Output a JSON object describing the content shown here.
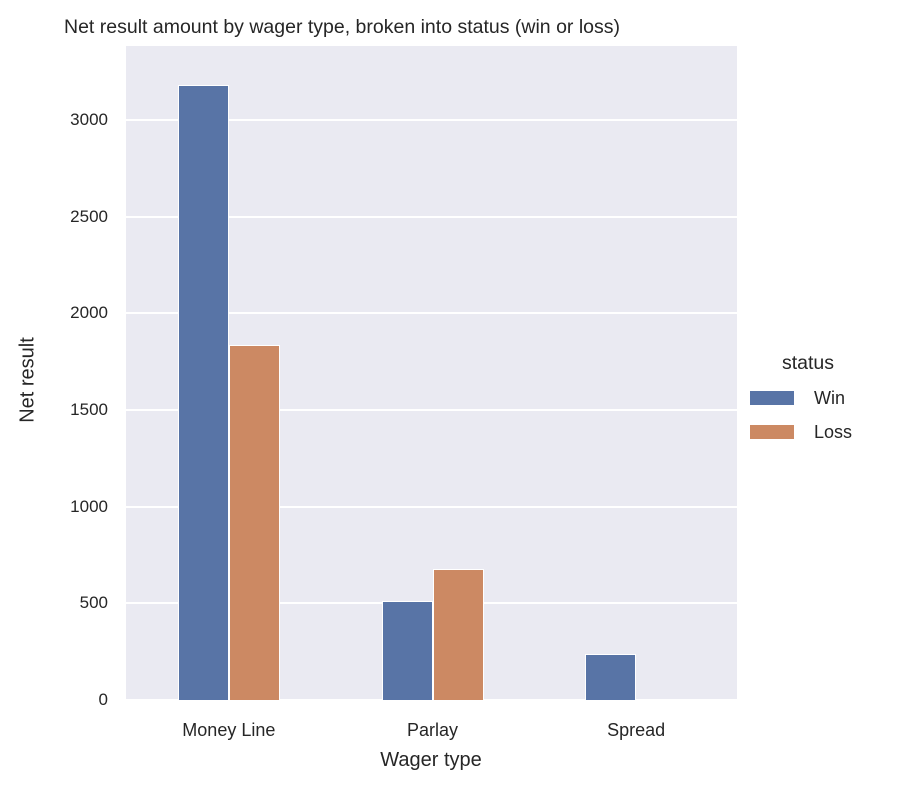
{
  "chart_data": {
    "type": "bar",
    "title": "Net result amount by wager type, broken into status (win or loss)",
    "xlabel": "Wager type",
    "ylabel": "Net result",
    "categories": [
      "Money Line",
      "Parlay",
      "Spread"
    ],
    "series": [
      {
        "name": "Win",
        "color": "#5874a6",
        "values": [
          3180,
          512,
          238
        ]
      },
      {
        "name": "Loss",
        "color": "#cc8963",
        "values": [
          1835,
          677,
          0
        ]
      }
    ],
    "ylim": [
      0,
      3390
    ],
    "yticks": [
      0,
      500,
      1000,
      1500,
      2000,
      2500,
      3000
    ],
    "ytick_labels": [
      "0",
      "500",
      "1000",
      "1500",
      "2000",
      "2500",
      "3000"
    ],
    "grid": true,
    "legend": {
      "title": "status",
      "position": "right",
      "entries": [
        "Win",
        "Loss"
      ]
    },
    "background": "#eaeaf2"
  }
}
